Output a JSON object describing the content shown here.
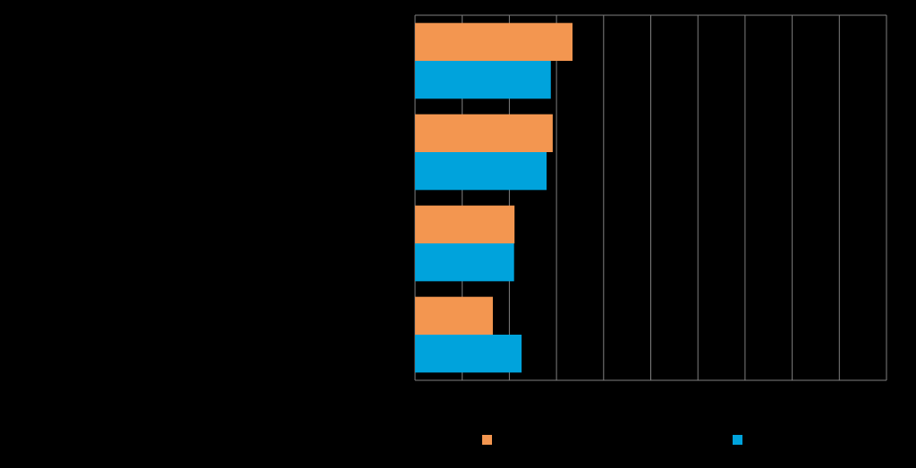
{
  "chart_data": {
    "type": "hbar",
    "categories": [
      null,
      null,
      null,
      null
    ],
    "series": [
      {
        "color": "#f39650",
        "values": [
          3.34,
          2.92,
          2.11,
          1.65
        ]
      },
      {
        "color": "#00a3dc",
        "values": [
          2.88,
          2.79,
          2.1,
          2.26
        ]
      }
    ],
    "xlim": [
      0,
      10
    ],
    "xticks": [
      0,
      1,
      2,
      3,
      4,
      5,
      6,
      7,
      8,
      9,
      10
    ],
    "grid": true
  }
}
